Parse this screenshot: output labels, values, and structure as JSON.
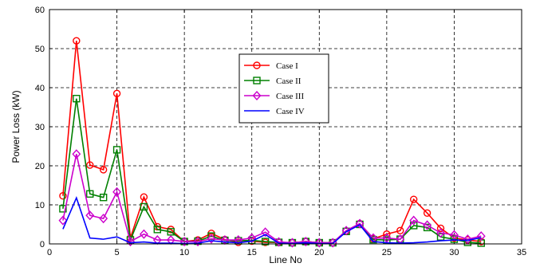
{
  "chart_data": {
    "type": "line",
    "title": "",
    "xlabel": "Line No",
    "ylabel": "Power Loss (kW)",
    "xlim": [
      0,
      35
    ],
    "ylim": [
      0,
      60
    ],
    "xticks": [
      0,
      5,
      10,
      15,
      20,
      25,
      30,
      35
    ],
    "yticks": [
      0,
      10,
      20,
      30,
      40,
      50,
      60
    ],
    "grid": "dashed",
    "legend_position": "upper-center",
    "x": [
      1,
      2,
      3,
      4,
      5,
      6,
      7,
      8,
      9,
      10,
      11,
      12,
      13,
      14,
      15,
      16,
      17,
      18,
      19,
      20,
      21,
      22,
      23,
      24,
      25,
      26,
      27,
      28,
      29,
      30,
      31,
      32
    ],
    "series": [
      {
        "name": "Case I",
        "color": "#ff0000",
        "marker": "circle",
        "values": [
          12.3,
          52.0,
          20.2,
          19.0,
          38.5,
          1.5,
          12.0,
          4.4,
          3.7,
          0.6,
          1.0,
          2.7,
          1.1,
          0.4,
          0.7,
          0.4,
          0.4,
          0.3,
          0.6,
          0.3,
          0.3,
          3.3,
          5.2,
          1.3,
          2.5,
          3.4,
          11.4,
          7.9,
          4.0,
          1.5,
          1.0,
          0.6
        ]
      },
      {
        "name": "Case II",
        "color": "#008000",
        "marker": "square",
        "values": [
          9.0,
          37.2,
          12.8,
          11.9,
          24.1,
          1.0,
          9.5,
          3.7,
          3.1,
          0.6,
          0.7,
          2.0,
          0.9,
          0.8,
          0.9,
          0.6,
          0.4,
          0.3,
          0.6,
          0.3,
          0.3,
          3.2,
          5.0,
          1.1,
          1.0,
          1.2,
          4.7,
          4.2,
          1.8,
          1.2,
          0.4,
          0.2
        ]
      },
      {
        "name": "Case III",
        "color": "#cc00cc",
        "marker": "diamond",
        "values": [
          6.0,
          23.0,
          7.3,
          6.5,
          13.3,
          0.6,
          2.5,
          1.0,
          1.0,
          0.6,
          0.6,
          1.3,
          1.0,
          1.0,
          1.5,
          3.0,
          0.5,
          0.3,
          0.6,
          0.3,
          0.3,
          3.4,
          5.2,
          1.5,
          1.5,
          1.2,
          6.0,
          4.8,
          2.8,
          2.3,
          1.2,
          2.0
        ]
      },
      {
        "name": "Case IV",
        "color": "#0000ff",
        "marker": "none",
        "values": [
          3.8,
          11.8,
          1.5,
          1.2,
          1.8,
          0.3,
          0.5,
          0.2,
          0.2,
          0.1,
          0.2,
          0.8,
          0.5,
          0.3,
          0.7,
          2.4,
          0.2,
          0.1,
          0.3,
          0.1,
          0.1,
          3.1,
          4.9,
          0.6,
          0.3,
          0.2,
          0.3,
          0.5,
          0.8,
          1.0,
          0.9,
          1.6
        ]
      }
    ]
  }
}
